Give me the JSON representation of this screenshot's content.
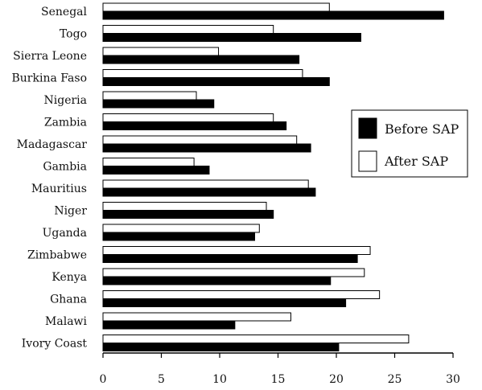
{
  "chart_data": {
    "type": "bar",
    "orientation": "horizontal",
    "categories": [
      "Senegal",
      "Togo",
      "Sierra Leone",
      "Burkina Faso",
      "Nigeria",
      "Zambia",
      "Madagascar",
      "Gambia",
      "Mauritius",
      "Niger",
      "Uganda",
      "Zimbabwe",
      "Kenya",
      "Ghana",
      "Malawi",
      "Ivory Coast"
    ],
    "series": [
      {
        "name": "After SAP",
        "color": "#ffffff",
        "values": [
          19.4,
          14.6,
          9.9,
          17.1,
          8.0,
          14.6,
          16.6,
          7.8,
          17.6,
          14.0,
          13.4,
          22.9,
          22.4,
          23.7,
          16.1,
          26.2
        ]
      },
      {
        "name": "Before SAP",
        "color": "#000000",
        "values": [
          29.2,
          22.1,
          16.8,
          19.4,
          9.5,
          15.7,
          17.8,
          9.1,
          18.2,
          14.6,
          13.0,
          21.8,
          19.5,
          20.8,
          11.3,
          20.2
        ]
      }
    ],
    "xlim": [
      0,
      30
    ],
    "xticks": [
      "0",
      "5",
      "10",
      "15",
      "20",
      "25",
      "30"
    ],
    "legend": {
      "position": "right",
      "entries": [
        "Before SAP",
        "After SAP"
      ]
    },
    "grid": false
  }
}
